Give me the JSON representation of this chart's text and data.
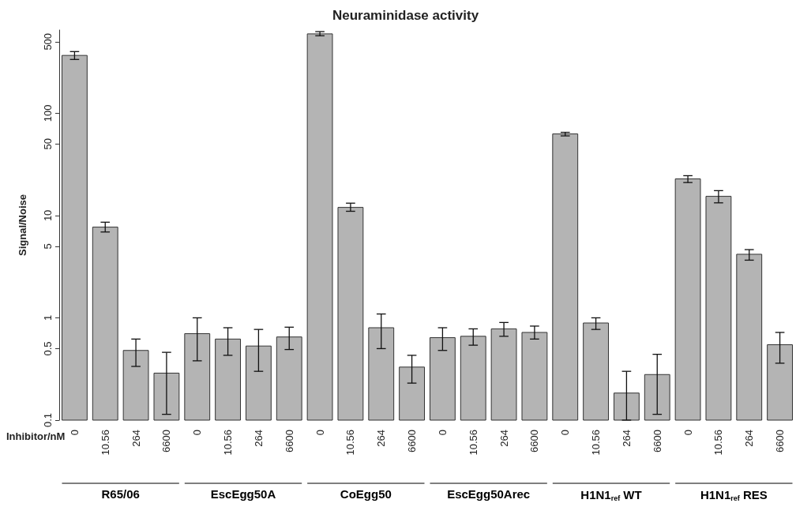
{
  "chart_data": {
    "type": "bar",
    "title": "Neuraminidase activity",
    "xlabel": "Inhibitor/nM",
    "ylabel": "Signal/Noise",
    "categories": [
      "0",
      "10.56",
      "264",
      "6600",
      "0",
      "10.56",
      "264",
      "6600",
      "0",
      "10.56",
      "264",
      "6600",
      "0",
      "10.56",
      "264",
      "6600",
      "0",
      "10.56",
      "264",
      "6600",
      "0",
      "10.56",
      "264",
      "6600"
    ],
    "values": [
      367,
      7.7,
      0.48,
      0.288,
      0.7,
      0.62,
      0.53,
      0.65,
      596,
      12.0,
      0.8,
      0.33,
      0.64,
      0.66,
      0.78,
      0.72,
      62.7,
      0.89,
      0.184,
      0.279,
      22.8,
      15.4,
      4.18,
      0.546
    ],
    "errors": [
      [
        335,
        400
      ],
      [
        6.9,
        8.6
      ],
      [
        0.335,
        0.62
      ],
      [
        0.114,
        0.46
      ],
      [
        0.38,
        1.0
      ],
      [
        0.43,
        0.8
      ],
      [
        0.3,
        0.77
      ],
      [
        0.49,
        0.81
      ],
      [
        571,
        627
      ],
      [
        11.0,
        13.2
      ],
      [
        0.5,
        1.09
      ],
      [
        0.23,
        0.43
      ],
      [
        0.48,
        0.8
      ],
      [
        0.54,
        0.78
      ],
      [
        0.66,
        0.9
      ],
      [
        0.62,
        0.83
      ],
      [
        60,
        65
      ],
      [
        0.77,
        1.0
      ],
      [
        0.1,
        0.3
      ],
      [
        0.114,
        0.44
      ],
      [
        21.0,
        24.5
      ],
      [
        13.3,
        17.5
      ],
      [
        3.66,
        4.64
      ],
      [
        0.36,
        0.72
      ]
    ],
    "color": "#b4b4b4",
    "annotations": [
      "R65/06",
      "EscEgg50A",
      "CoEgg50",
      "EscEgg50Arec",
      "H1N1$_{ref}$ WT",
      "H1N1$_{ref}$ RES"
    ],
    "log": "y",
    "ylim": [
      0.1,
      650
    ],
    "yticks": [
      0.1,
      0.5,
      1,
      5,
      10,
      50,
      100,
      500
    ],
    "grid": false
  }
}
